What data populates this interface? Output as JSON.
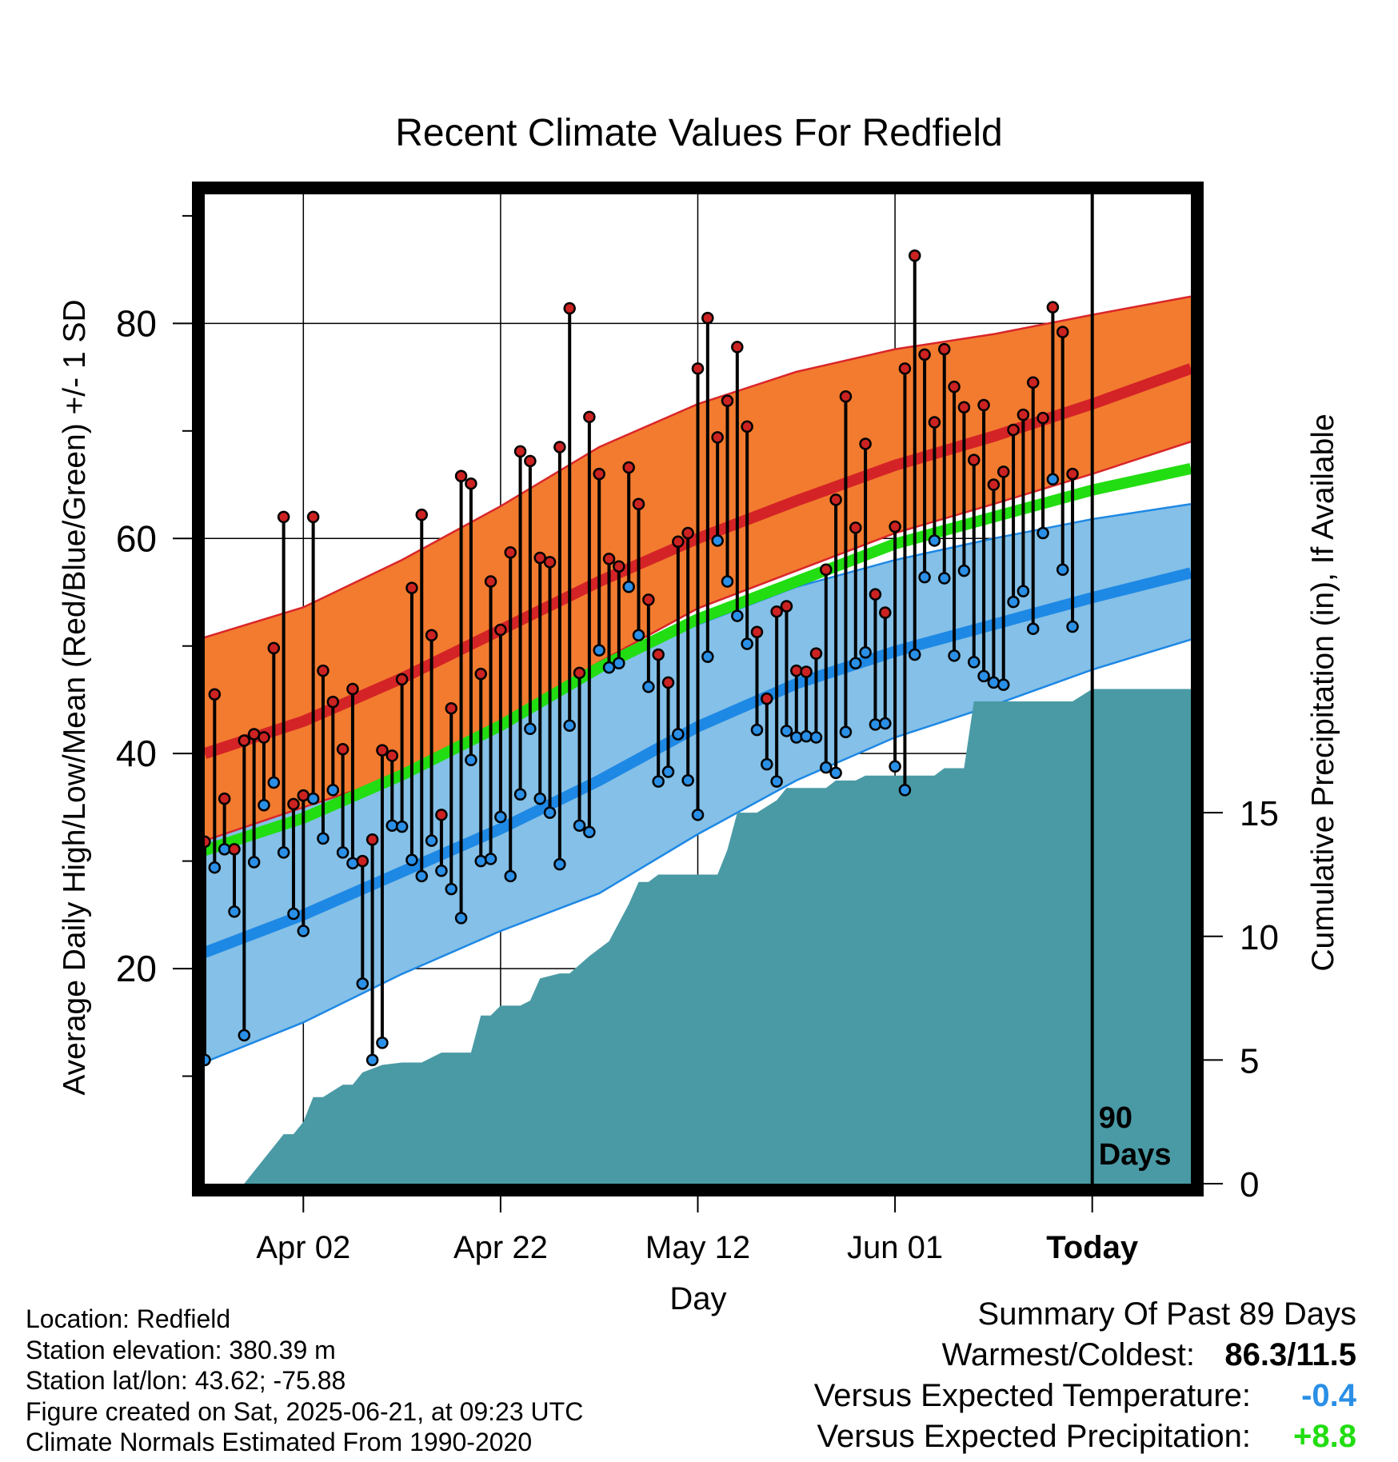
{
  "chart_data": {
    "type": "line",
    "title": "Recent Climate Values For Redfield",
    "xlabel": "Day",
    "ylabel_left": "Average Daily High/Low/Mean (Red/Blue/Green) +/- 1 SD",
    "ylabel_right": "Cumulative Precipitation (in), If Available",
    "ylim_left": [
      0,
      92
    ],
    "ylim_right": [
      0,
      40
    ],
    "left_ticks": [
      "20",
      "40",
      "60",
      "80"
    ],
    "right_ticks": [
      "0",
      "5",
      "10",
      "15"
    ],
    "x_ticks": [
      "Apr 02",
      "Apr 22",
      "May 12",
      "Jun 01",
      "Today"
    ],
    "x_start": "2025-03-23",
    "today": "2025-06-21",
    "x_end": "2025-07-01",
    "today_label": [
      "90",
      "Days"
    ],
    "grid": true,
    "normals": {
      "dates": [
        "2025-03-23",
        "2025-04-02",
        "2025-04-12",
        "2025-04-22",
        "2025-05-02",
        "2025-05-12",
        "2025-05-22",
        "2025-06-01",
        "2025-06-11",
        "2025-06-21",
        "2025-07-01"
      ],
      "mean_high": [
        40.0,
        43.0,
        47.0,
        51.5,
        56.0,
        60.0,
        63.5,
        66.8,
        69.5,
        72.5,
        75.8
      ],
      "high_sd_upper": [
        50.8,
        53.6,
        58.0,
        63.0,
        68.5,
        72.5,
        75.5,
        77.6,
        79.0,
        80.8,
        82.5
      ],
      "high_sd_lower": [
        31.9,
        35.0,
        38.0,
        42.5,
        48.5,
        53.5,
        57.0,
        60.5,
        63.2,
        66.0,
        69.0
      ],
      "mean_temp": [
        31.0,
        34.0,
        38.0,
        42.6,
        48.0,
        52.5,
        56.0,
        59.5,
        62.0,
        64.5,
        66.5
      ],
      "mean_low": [
        21.5,
        25.0,
        29.0,
        33.0,
        37.5,
        42.5,
        46.5,
        49.5,
        52.0,
        54.5,
        56.8
      ],
      "low_sd_upper": [
        32.0,
        35.5,
        39.0,
        43.5,
        48.0,
        52.0,
        55.5,
        58.0,
        60.0,
        61.8,
        63.2
      ],
      "low_sd_lower": [
        11.3,
        15.0,
        19.5,
        23.5,
        27.0,
        32.5,
        37.5,
        41.5,
        44.5,
        47.8,
        50.6
      ]
    },
    "series": [
      {
        "name": "Daily High",
        "color": "#cc2222",
        "values": [
          31.8,
          45.5,
          35.8,
          31.1,
          41.2,
          41.8,
          41.5,
          49.8,
          62.0,
          35.3,
          36.1,
          62.0,
          47.7,
          44.8,
          40.4,
          46.0,
          30.0,
          32.0,
          40.3,
          39.8,
          46.9,
          55.4,
          62.2,
          51.0,
          34.3,
          44.2,
          65.8,
          65.1,
          47.4,
          56.0,
          51.5,
          58.7,
          68.1,
          67.2,
          58.2,
          57.8,
          68.5,
          81.4,
          47.5,
          71.3,
          66.0,
          58.1,
          57.4,
          66.6,
          63.2,
          54.3,
          49.2,
          46.6,
          59.7,
          60.5,
          75.8,
          80.5,
          69.4,
          72.8,
          77.8,
          70.4,
          51.3,
          45.1,
          53.2,
          53.7,
          47.7,
          47.6,
          49.3,
          57.1,
          63.6,
          73.2,
          61.0,
          68.8,
          54.8,
          53.1,
          61.1,
          75.8,
          86.3,
          77.1,
          70.8,
          77.6,
          74.1,
          72.2,
          67.3,
          72.4,
          65.0,
          66.2,
          70.1,
          71.5,
          74.5,
          71.2,
          81.5,
          79.2,
          66.0
        ],
        "lows": [
          11.5,
          29.4,
          31.1,
          25.3,
          13.8,
          29.9,
          35.2,
          37.3,
          30.8,
          25.1,
          23.5,
          35.8,
          32.1,
          36.6,
          30.8,
          29.8,
          18.6,
          11.5,
          13.1,
          33.3,
          33.2,
          30.1,
          28.6,
          31.9,
          29.1,
          27.4,
          24.7,
          39.4,
          30.0,
          30.2,
          34.1,
          28.6,
          36.2,
          42.3,
          35.8,
          34.5,
          29.7,
          42.6,
          33.3,
          32.7,
          49.6,
          48.0,
          48.4,
          55.5,
          51.0,
          46.2,
          37.4,
          38.3,
          41.8,
          37.5,
          34.3,
          49.0,
          59.8,
          56.0,
          52.8,
          50.2,
          42.2,
          39.0,
          37.4,
          42.1,
          41.5,
          41.6,
          41.5,
          38.7,
          38.2,
          42.0,
          48.4,
          49.4,
          42.7,
          42.8,
          38.8,
          36.6,
          49.2,
          56.4,
          59.8,
          56.3,
          49.1,
          57.0,
          48.5,
          47.2,
          46.6,
          46.4,
          54.1,
          55.1,
          51.6,
          60.5,
          65.5,
          57.1,
          51.8
        ]
      },
      {
        "name": "Daily Low",
        "color": "#1e88e5",
        "values": [
          11.5,
          29.4,
          31.1,
          25.3,
          13.8,
          29.9,
          35.2,
          37.3,
          30.8,
          25.1,
          23.5,
          35.8,
          32.1,
          36.6,
          30.8,
          29.8,
          18.6,
          11.5,
          13.1,
          33.3,
          33.2,
          30.1,
          28.6,
          31.9,
          29.1,
          27.4,
          24.7,
          39.4,
          30.0,
          30.2,
          34.1,
          28.6,
          36.2,
          42.3,
          35.8,
          34.5,
          29.7,
          42.6,
          33.3,
          32.7,
          49.6,
          48.0,
          48.4,
          55.5,
          51.0,
          46.2,
          37.4,
          38.3,
          41.8,
          37.5,
          34.3,
          49.0,
          59.8,
          56.0,
          52.8,
          50.2,
          42.2,
          39.0,
          37.4,
          42.1,
          41.5,
          41.6,
          41.5,
          38.7,
          38.2,
          42.0,
          48.4,
          49.4,
          42.7,
          42.8,
          38.8,
          36.6,
          49.2,
          56.4,
          59.8,
          56.3,
          49.1,
          57.0,
          48.5,
          47.2,
          46.6,
          46.4,
          54.1,
          55.1,
          51.6,
          60.5,
          65.5,
          57.1,
          51.8
        ]
      },
      {
        "name": "Cumulative Precipitation",
        "color": "#4a9aa5",
        "dates": [
          "2025-03-23",
          "2025-03-27",
          "2025-03-28",
          "2025-03-30",
          "2025-03-31",
          "2025-04-01",
          "2025-04-02",
          "2025-04-03",
          "2025-04-04",
          "2025-04-06",
          "2025-04-07",
          "2025-04-08",
          "2025-04-10",
          "2025-04-12",
          "2025-04-14",
          "2025-04-16",
          "2025-04-17",
          "2025-04-19",
          "2025-04-20",
          "2025-04-21",
          "2025-04-22",
          "2025-04-24",
          "2025-04-25",
          "2025-04-26",
          "2025-04-28",
          "2025-04-29",
          "2025-05-01",
          "2025-05-03",
          "2025-05-05",
          "2025-05-06",
          "2025-05-07",
          "2025-05-08",
          "2025-05-10",
          "2025-05-14",
          "2025-05-15",
          "2025-05-16",
          "2025-05-17",
          "2025-05-18",
          "2025-05-20",
          "2025-05-21",
          "2025-05-23",
          "2025-05-25",
          "2025-05-26",
          "2025-05-28",
          "2025-05-29",
          "2025-05-31",
          "2025-06-01",
          "2025-06-05",
          "2025-06-06",
          "2025-06-08",
          "2025-06-09",
          "2025-06-15",
          "2025-06-16",
          "2025-06-19",
          "2025-06-21",
          "2025-07-01"
        ],
        "values": [
          0.0,
          0.0,
          0.5,
          1.5,
          2.0,
          2.0,
          2.5,
          3.5,
          3.5,
          4.0,
          4.0,
          4.5,
          4.8,
          4.9,
          4.9,
          5.3,
          5.3,
          5.3,
          6.8,
          6.8,
          7.2,
          7.2,
          7.4,
          8.3,
          8.5,
          8.5,
          9.2,
          9.8,
          11.3,
          12.2,
          12.2,
          12.5,
          12.5,
          12.5,
          13.5,
          15.0,
          15.0,
          15.0,
          15.5,
          16.0,
          16.0,
          16.0,
          16.3,
          16.3,
          16.5,
          16.5,
          16.5,
          16.5,
          16.8,
          16.8,
          19.5,
          19.5,
          19.5,
          19.5,
          20.0,
          20.0
        ]
      }
    ],
    "bands": [
      {
        "name": "High +/- 1 SD",
        "color": "#f27b2f"
      },
      {
        "name": "Low +/- 1 SD",
        "color": "#84c0e7"
      },
      {
        "name": "Mean",
        "color": "#22dd11"
      }
    ]
  },
  "info": {
    "location": "Location: Redfield",
    "elevation": "Station elevation: 380.39 m",
    "latlon": "Station lat/lon: 43.62; -75.88",
    "created": "Figure created on Sat, 2025-06-21, at 09:23 UTC",
    "normals": "Climate Normals Estimated From 1990-2020"
  },
  "summary": {
    "heading": "Summary Of Past 89 Days",
    "warm_cold_label": "Warmest/Coldest:",
    "warm_cold_value": "86.3/11.5",
    "temp_label": "Versus Expected Temperature:",
    "temp_value": "-0.4",
    "temp_color": "#2a8fe6",
    "precip_label": "Versus Expected Precipitation:",
    "precip_value": "+8.8",
    "precip_color": "#22dd11"
  }
}
